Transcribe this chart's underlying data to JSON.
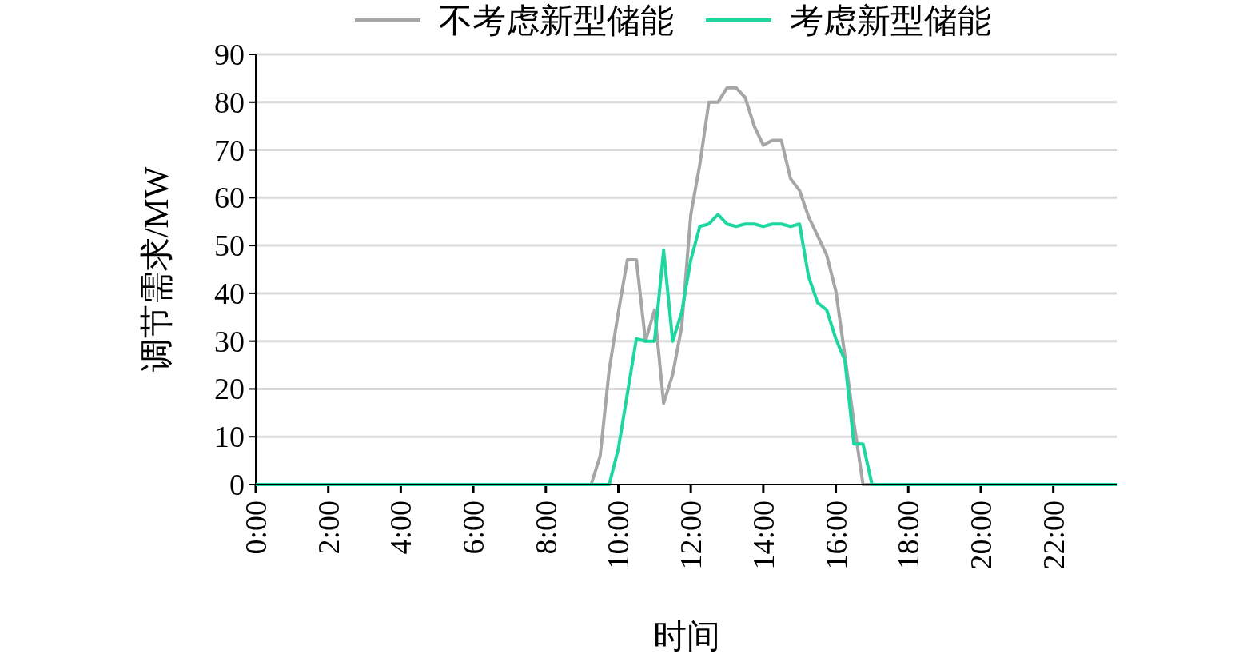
{
  "chart_data": {
    "type": "line",
    "xlabel": "时间",
    "ylabel": "调节需求/MW",
    "xlim": [
      0,
      23.75
    ],
    "ylim": [
      0,
      90
    ],
    "xticks": [
      {
        "value": 0,
        "label": "0:00"
      },
      {
        "value": 2,
        "label": "2:00"
      },
      {
        "value": 4,
        "label": "4:00"
      },
      {
        "value": 6,
        "label": "6:00"
      },
      {
        "value": 8,
        "label": "8:00"
      },
      {
        "value": 10,
        "label": "10:00"
      },
      {
        "value": 12,
        "label": "12:00"
      },
      {
        "value": 14,
        "label": "14:00"
      },
      {
        "value": 16,
        "label": "16:00"
      },
      {
        "value": 18,
        "label": "18:00"
      },
      {
        "value": 20,
        "label": "20:00"
      },
      {
        "value": 22,
        "label": "22:00"
      }
    ],
    "yticks": [
      0,
      10,
      20,
      30,
      40,
      50,
      60,
      70,
      80,
      90
    ],
    "grid": "y",
    "legend": "top",
    "marker": "none",
    "line_style": "solid",
    "series": [
      {
        "name": "不考虑新型储能",
        "color": "#a6a6a6",
        "x": [
          0,
          9.25,
          9.5,
          9.75,
          10,
          10.25,
          10.5,
          10.75,
          11,
          11.25,
          11.5,
          11.75,
          12,
          12.25,
          12.5,
          12.75,
          13,
          13.25,
          13.5,
          13.75,
          14,
          14.25,
          14.5,
          14.75,
          15,
          15.25,
          15.5,
          15.75,
          16,
          16.25,
          16.5,
          16.75,
          23.75
        ],
        "values": [
          0,
          0,
          6,
          24,
          36,
          47,
          47,
          30,
          36.5,
          17,
          23,
          33,
          56.5,
          67,
          80,
          80,
          83,
          83,
          81,
          75,
          71,
          72,
          72,
          64,
          61.5,
          56,
          52,
          48,
          40.5,
          27,
          13,
          0,
          0
        ]
      },
      {
        "name": "考虑新型储能",
        "color": "#1ed69f",
        "x": [
          0,
          9.75,
          10,
          10.25,
          10.5,
          10.75,
          11,
          11.25,
          11.5,
          11.75,
          12,
          12.25,
          12.5,
          12.75,
          13,
          13.25,
          13.5,
          13.75,
          14,
          14.25,
          14.5,
          14.75,
          15,
          15.25,
          15.5,
          15.75,
          16,
          16.25,
          16.5,
          16.75,
          17,
          23.75
        ],
        "values": [
          0,
          0,
          7.5,
          19,
          30.5,
          30,
          30,
          49,
          30,
          36,
          47,
          54,
          54.5,
          56.5,
          54.5,
          54,
          54.5,
          54.5,
          54,
          54.5,
          54.5,
          54,
          54.5,
          43.5,
          38,
          36.5,
          30.5,
          26,
          8.5,
          8.5,
          0,
          0
        ]
      }
    ]
  }
}
